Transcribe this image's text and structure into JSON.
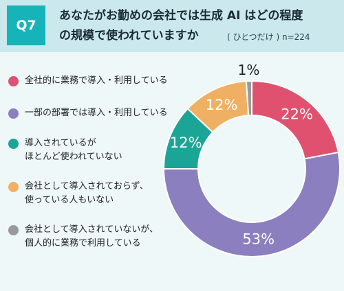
{
  "header": {
    "badge": "Q7",
    "title_line1": "あなたがお勤めの会社では生成 AI はどの程度",
    "title_line2": "の規模で使われていますか",
    "note": "( ひとつだけ ) n=224"
  },
  "chart_data": {
    "type": "pie",
    "donut": true,
    "series": [
      {
        "label": "全社的に業務で導入・利用している",
        "value": 22,
        "display": "22%",
        "color": "#e0516f"
      },
      {
        "label": "一部の部署では導入・利用している",
        "value": 53,
        "display": "53%",
        "color": "#8b7fbf"
      },
      {
        "label": "導入されているが\nほとんど使われていない",
        "value": 12,
        "display": "12%",
        "color": "#1aa596"
      },
      {
        "label": "会社として導入されておらず、\n使っている人もいない",
        "value": 12,
        "display": "12%",
        "color": "#f0b063"
      },
      {
        "label": "会社として導入されていないが、\n個人的に業務で利用している",
        "value": 1,
        "display": "1%",
        "color": "#9a9a9a"
      }
    ]
  }
}
